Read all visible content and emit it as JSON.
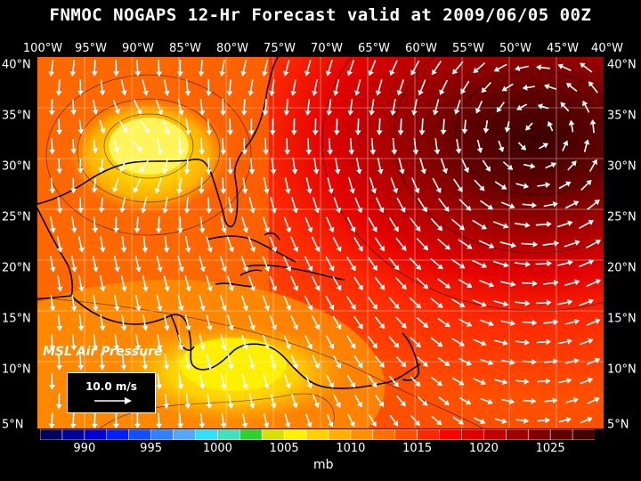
{
  "title": "FNMOC NOGAPS 12-Hr Forecast valid at 2009/06/05 00Z",
  "lon_labels": [
    "100°W",
    "95°W",
    "90°W",
    "85°W",
    "80°W",
    "75°W",
    "70°W",
    "65°W",
    "60°W",
    "55°W",
    "50°W",
    "45°W",
    "40°W"
  ],
  "lat_labels": [
    "40°N",
    "35°N",
    "30°N",
    "25°N",
    "20°N",
    "15°N",
    "10°N",
    "5°N"
  ],
  "panel_title": "MSL Air Pressure",
  "scale_label": "10.0 m/s",
  "colorbar": {
    "ticks": [
      "990",
      "995",
      "1000",
      "1005",
      "1010",
      "1015",
      "1020",
      "1025"
    ],
    "unit": "mb",
    "colors": [
      "#000060",
      "#00009a",
      "#0000d0",
      "#0020ff",
      "#1050ff",
      "#3080ff",
      "#50a8ff",
      "#30e0ff",
      "#40e0c0",
      "#30d030",
      "#d8e000",
      "#fff000",
      "#ffd000",
      "#ffb000",
      "#ff9000",
      "#ff7000",
      "#ff5000",
      "#ff2800",
      "#ff0000",
      "#e00000",
      "#c00000",
      "#a00000",
      "#800000",
      "#600000",
      "#450000"
    ]
  }
}
